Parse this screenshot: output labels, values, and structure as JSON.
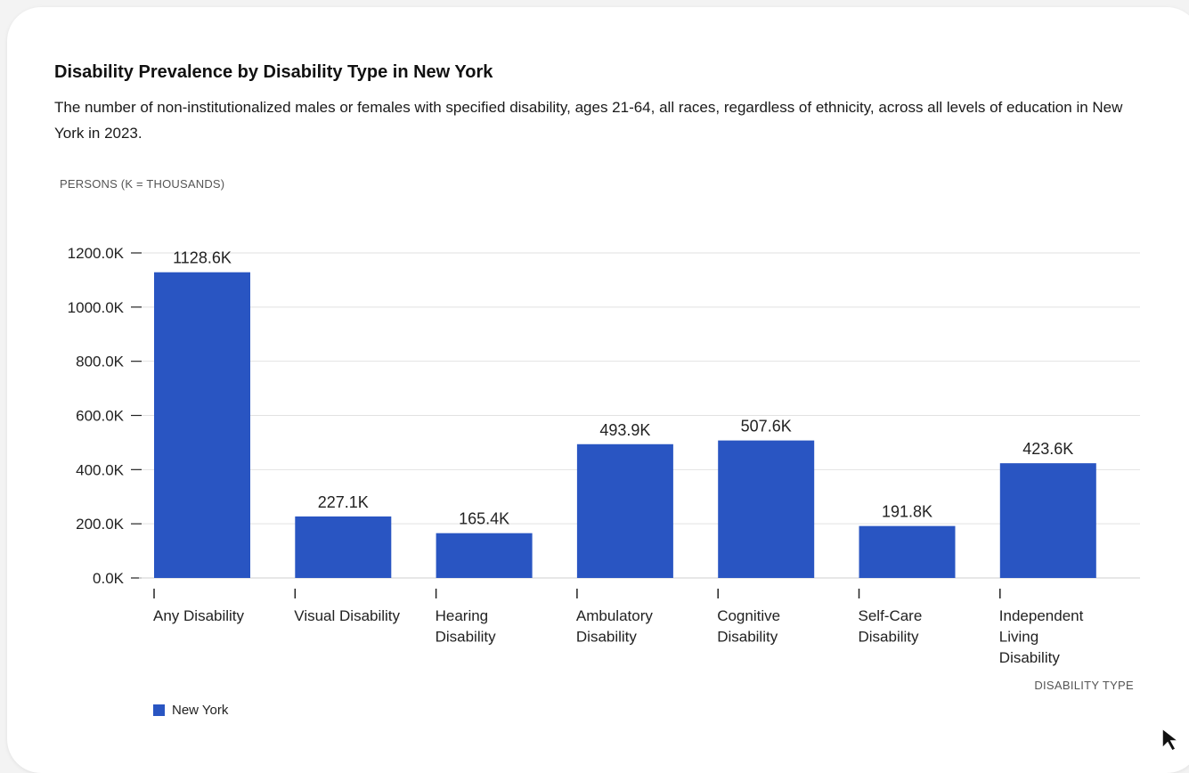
{
  "chart_data": {
    "type": "bar",
    "title": "Disability Prevalence by Disability Type in New York",
    "subtitle": "The number of non-institutionalized males or females with specified disability, ages 21-64, all races, regardless of ethnicity, across all levels of education in New York in 2023.",
    "ylabel": "PERSONS (K = THOUSANDS)",
    "xlabel": "DISABILITY TYPE",
    "categories": [
      [
        "Any Disability"
      ],
      [
        "Visual Disability"
      ],
      [
        "Hearing",
        "Disability"
      ],
      [
        "Ambulatory",
        "Disability"
      ],
      [
        "Cognitive",
        "Disability"
      ],
      [
        "Self-Care",
        "Disability"
      ],
      [
        "Independent",
        "Living",
        "Disability"
      ]
    ],
    "series": [
      {
        "name": "New York",
        "color": "#2955c2",
        "values": [
          1128.6,
          227.1,
          165.4,
          493.9,
          507.6,
          191.8,
          423.6
        ],
        "labels": [
          "1128.6K",
          "227.1K",
          "165.4K",
          "493.9K",
          "507.6K",
          "191.8K",
          "423.6K"
        ]
      }
    ],
    "yticks": [
      0,
      200,
      400,
      600,
      800,
      1000,
      1200
    ],
    "ytick_labels": [
      "0.0K",
      "200.0K",
      "400.0K",
      "600.0K",
      "800.0K",
      "1000.0K",
      "1200.0K"
    ],
    "ylim": [
      0,
      1200
    ],
    "grid": true,
    "legend_position": "bottom-left"
  },
  "legend": {
    "label": "New York",
    "color": "#2955c2"
  },
  "cursor": {
    "icon": "mouse-pointer-icon"
  }
}
